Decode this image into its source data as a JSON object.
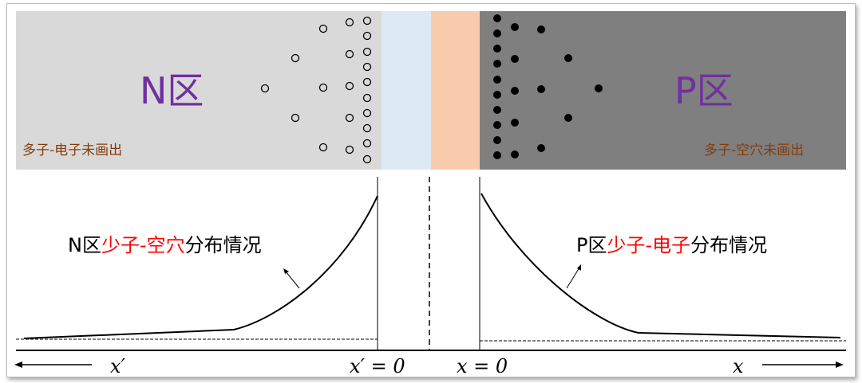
{
  "top": {
    "n_region_label": "N区",
    "p_region_label": "P区",
    "n_majority_note": "多子-电子未画出",
    "p_majority_note": "多子-空穴未画出"
  },
  "bottom": {
    "n_label": {
      "prefix": "N区",
      "highlight": "少子-空穴",
      "suffix": "分布情况"
    },
    "p_label": {
      "prefix": "P区",
      "highlight": "少子-电子",
      "suffix": "分布情况"
    },
    "axis_left": "x′",
    "axis_left_zero": "x′ = 0",
    "axis_right_zero": "x = 0",
    "axis_right": "x"
  },
  "colors": {
    "n_region": "#d9d9d9",
    "depletion_n": "#dde9f5",
    "depletion_p": "#f8cbad",
    "p_region": "#7f7f7f",
    "region_label": "#7030a0",
    "note": "#843c0c",
    "highlight": "#ff0000"
  }
}
